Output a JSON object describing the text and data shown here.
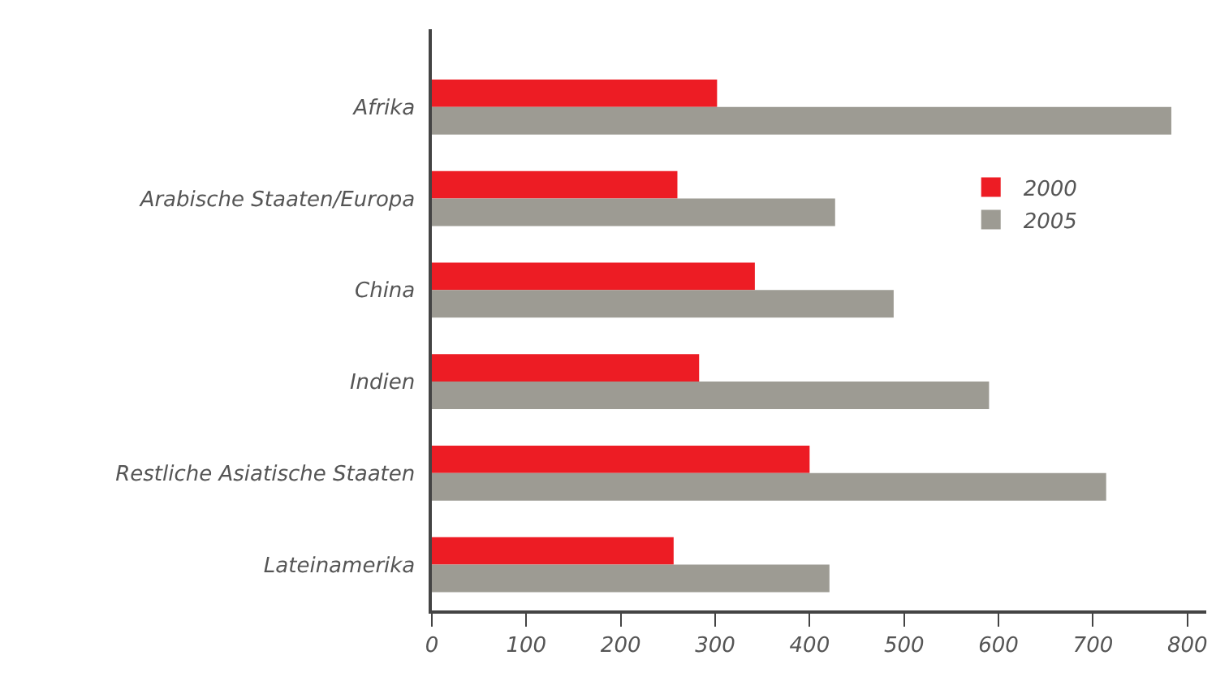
{
  "chart_data": {
    "type": "bar",
    "orientation": "horizontal",
    "categories": [
      "Afrika",
      "Arabische Staaten/Europa",
      "China",
      "Indien",
      "Restliche Asiatische Staaten",
      "Lateinamerika"
    ],
    "series": [
      {
        "name": "2000",
        "color": "#ed1c24",
        "values": [
          302,
          260,
          342,
          283,
          400,
          256
        ]
      },
      {
        "name": "2005",
        "color": "#9d9b93",
        "values": [
          783,
          427,
          489,
          590,
          714,
          421
        ]
      }
    ],
    "xlim": [
      0,
      820
    ],
    "xticks": [
      0,
      100,
      200,
      300,
      400,
      500,
      600,
      700,
      800
    ],
    "grid": false,
    "legend": "top right"
  }
}
